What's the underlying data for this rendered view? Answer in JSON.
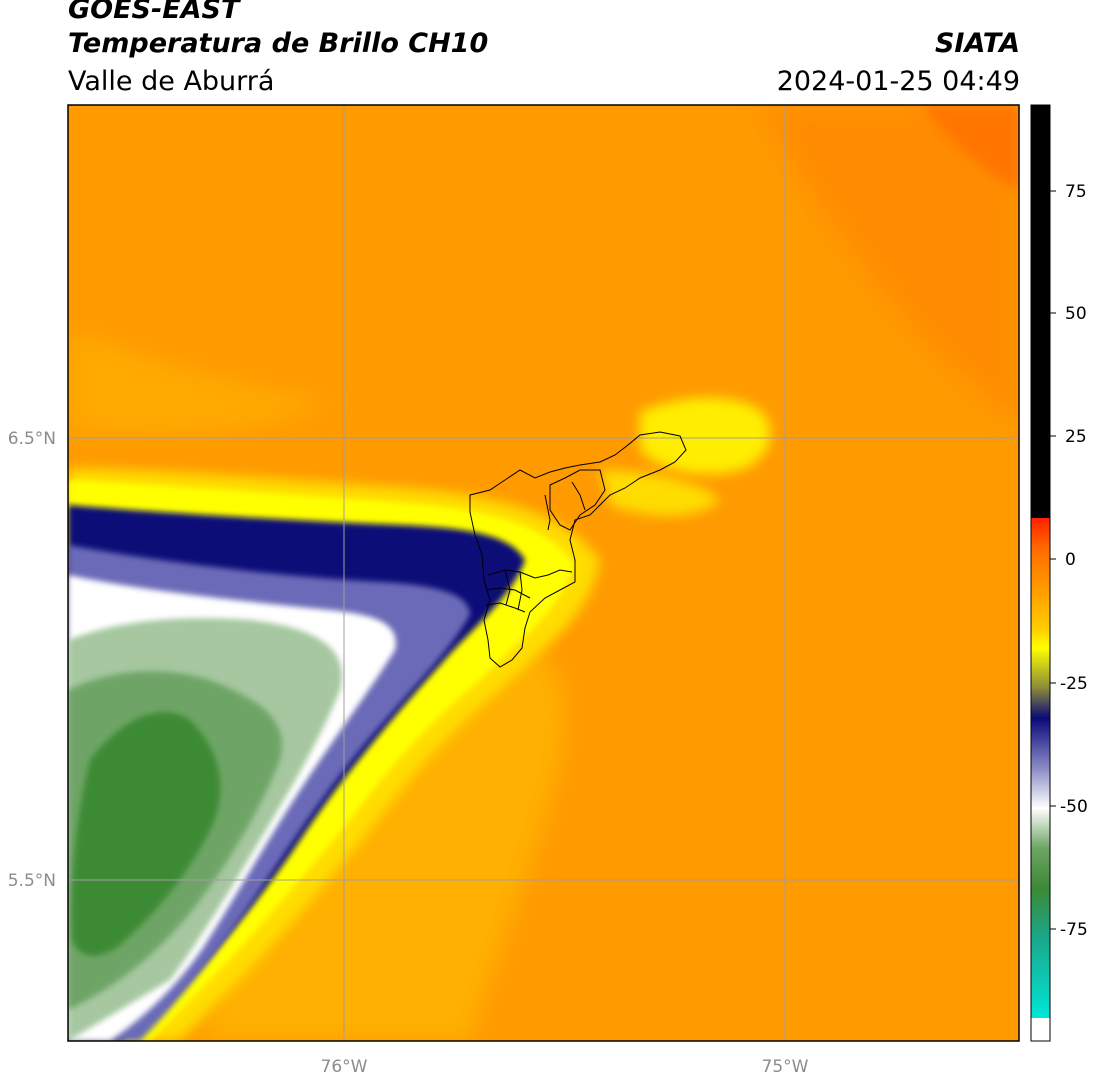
{
  "header": {
    "title_line1": "GOES-EAST",
    "title_line2": "Temperatura de Brillo CH10",
    "region": "Valle de Aburrá",
    "agency": "SIATA",
    "timestamp": "2024-01-25 04:49"
  },
  "map": {
    "lat_labels": [
      "6.5°N",
      "5.5°N"
    ],
    "lon_labels": [
      "76°W",
      "75°W"
    ]
  },
  "colorbar": {
    "ticks": [
      "75",
      "50",
      "25",
      "0",
      "-25",
      "-50",
      "-75"
    ],
    "colors": {
      "black": "#000000",
      "red": "#ff2200",
      "orange": "#ff9a00",
      "yellow": "#ffff00",
      "navy": "#0a0a78",
      "white": "#ffffff",
      "green": "#3c8a35",
      "cyan": "#00e5d8"
    }
  }
}
